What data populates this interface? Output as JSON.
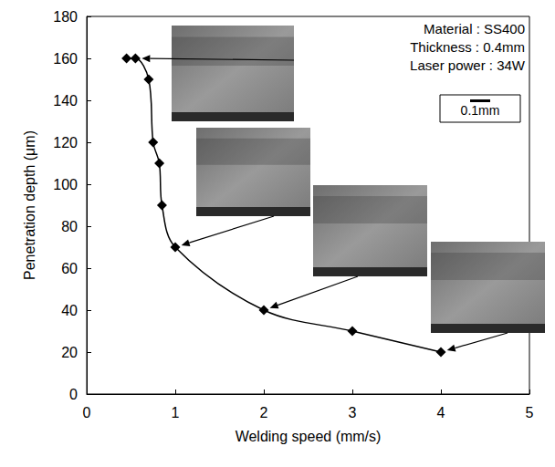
{
  "chart_data": {
    "type": "line",
    "x": [
      0.45,
      0.55,
      0.7,
      0.75,
      0.82,
      0.85,
      1.0,
      2.0,
      3.0,
      4.0
    ],
    "values": [
      160,
      160,
      150,
      120,
      110,
      90,
      70,
      40,
      30,
      20
    ],
    "color": "#000000",
    "marker": "diamond",
    "line_style": "solid",
    "xlabel": "Welding speed (mm/s)",
    "ylabel": "Penetration depth (μm)",
    "xlim": [
      0,
      5
    ],
    "xticks": [
      0,
      1,
      2,
      3,
      4,
      5
    ],
    "ylim": [
      0,
      180
    ],
    "yticks": [
      0,
      20,
      40,
      60,
      80,
      100,
      120,
      140,
      160,
      180
    ],
    "grid": false,
    "annotations": [
      "Material : SS400",
      "Thickness : 0.4mm",
      "Laser power : 34W",
      "0.1mm"
    ]
  }
}
